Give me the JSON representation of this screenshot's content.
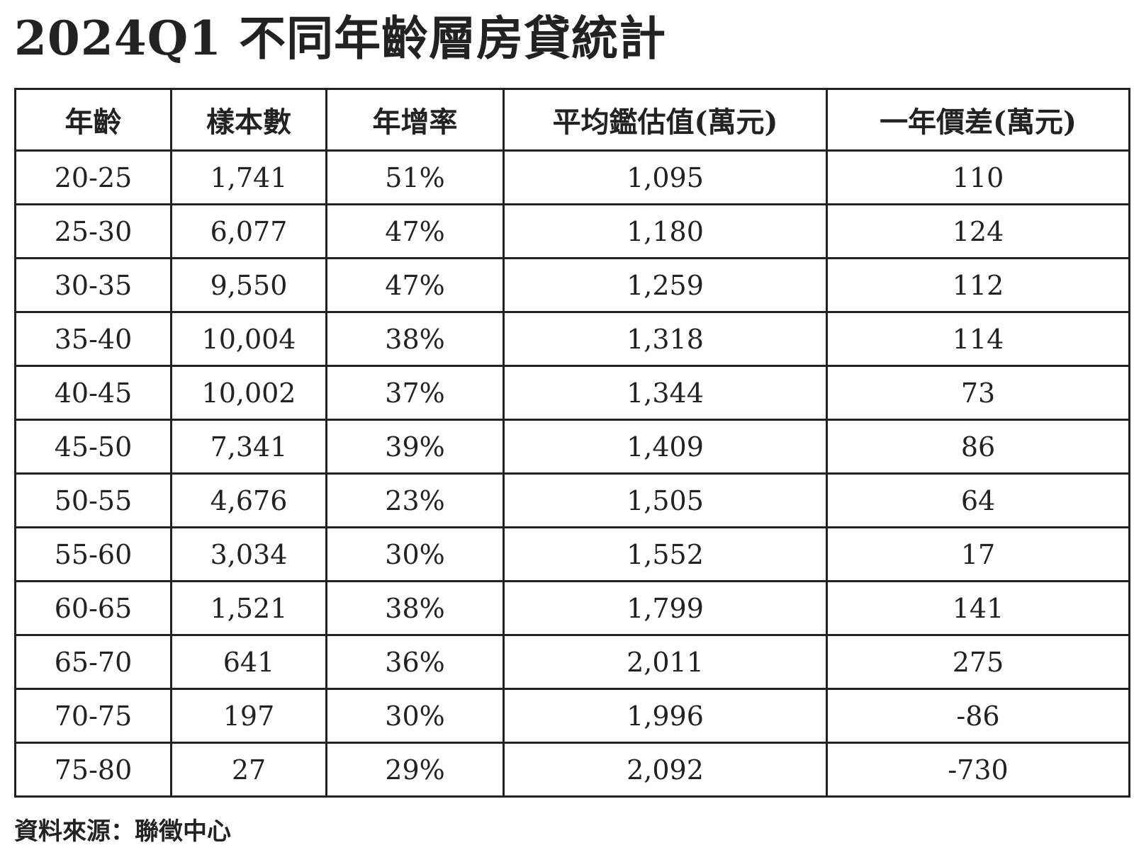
{
  "title": "2024Q1 不同年齡層房貸統計",
  "headers": [
    "年齡",
    "樣本數",
    "年增率",
    "平均鑑估值(萬元)",
    "一年價差(萬元)"
  ],
  "rows": [
    [
      "20-25",
      "1,741",
      "51%",
      "1,095",
      "110"
    ],
    [
      "25-30",
      "6,077",
      "47%",
      "1,180",
      "124"
    ],
    [
      "30-35",
      "9,550",
      "47%",
      "1,259",
      "112"
    ],
    [
      "35-40",
      "10,004",
      "38%",
      "1,318",
      "114"
    ],
    [
      "40-45",
      "10,002",
      "37%",
      "1,344",
      "73"
    ],
    [
      "45-50",
      "7,341",
      "39%",
      "1,409",
      "86"
    ],
    [
      "50-55",
      "4,676",
      "23%",
      "1,505",
      "64"
    ],
    [
      "55-60",
      "3,034",
      "30%",
      "1,552",
      "17"
    ],
    [
      "60-65",
      "1,521",
      "38%",
      "1,799",
      "141"
    ],
    [
      "65-70",
      "641",
      "36%",
      "2,011",
      "275"
    ],
    [
      "70-75",
      "197",
      "30%",
      "1,996",
      "-86"
    ],
    [
      "75-80",
      "27",
      "29%",
      "2,092",
      "-730"
    ]
  ],
  "source": "資料來源：聯徵中心"
}
